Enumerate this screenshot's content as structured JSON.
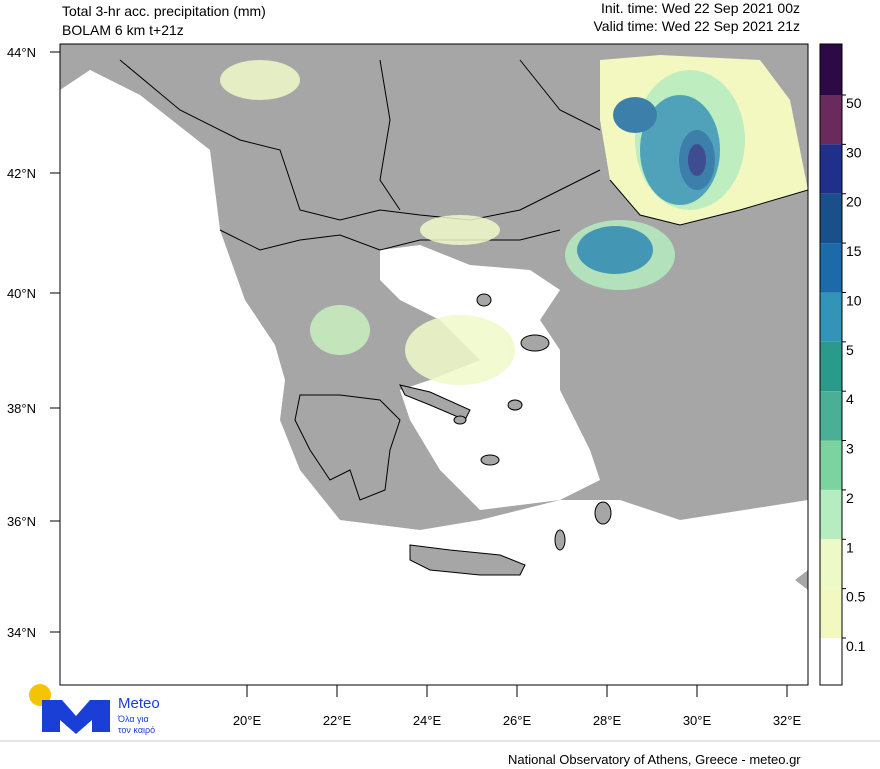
{
  "header": {
    "title": "Total 3-hr acc. precipitation (mm)",
    "model": "BOLAM 6 km t+21z",
    "init_time": "Init. time: Wed 22 Sep 2021 00z",
    "valid_time": "Valid time: Wed 22 Sep 2021 21z"
  },
  "map": {
    "lat_labels": [
      "44°N",
      "42°N",
      "40°N",
      "38°N",
      "36°N",
      "34°N"
    ],
    "lon_labels": [
      "20°E",
      "22°E",
      "24°E",
      "26°E",
      "28°E",
      "30°E",
      "32°E"
    ]
  },
  "colorbar": {
    "labels": [
      "50",
      "30",
      "20",
      "15",
      "10",
      "5",
      "4",
      "3",
      "2",
      "1",
      "0.5",
      "0.1"
    ]
  },
  "logo": {
    "name": "Meteo",
    "line1": "Όλα για",
    "line2": "τον καιρό"
  },
  "footer": "National Observatory of Athens, Greece - meteo.gr"
}
